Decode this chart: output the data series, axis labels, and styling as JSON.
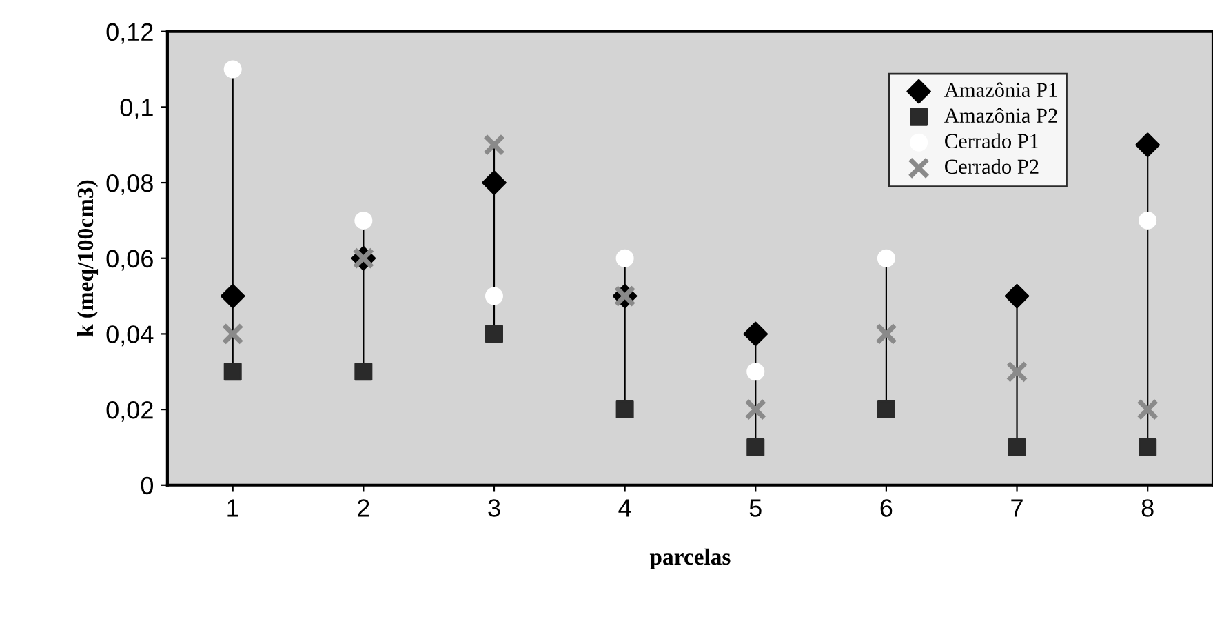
{
  "chart_data": {
    "type": "scatter",
    "xlabel": "parcelas",
    "ylabel": "k (meq/100cm3)",
    "categories": [
      "1",
      "2",
      "3",
      "4",
      "5",
      "6",
      "7",
      "8"
    ],
    "ylim": [
      0,
      0.12
    ],
    "yticks": [
      0,
      {
        "value": 0.02,
        "label": "0,02"
      },
      {
        "value": 0.04,
        "label": "0,04"
      },
      {
        "value": 0.06,
        "label": "0,06"
      },
      {
        "value": 0.08,
        "label": "0,08"
      },
      {
        "value": 0.1,
        "label": "0,1"
      },
      {
        "value": 0.12,
        "label": "0,12"
      }
    ],
    "grid": false,
    "legend": "top right",
    "series": [
      {
        "name": "Amazônia P1",
        "color": "#000000",
        "marker": "diamond",
        "values": [
          0.05,
          0.06,
          0.08,
          0.05,
          0.04,
          null,
          0.05,
          0.09
        ]
      },
      {
        "name": "Amazônia P2",
        "color": "#2a2a2a",
        "marker": "square",
        "values": [
          0.03,
          0.03,
          0.04,
          0.02,
          0.01,
          0.02,
          0.01,
          0.01
        ]
      },
      {
        "name": "Cerrado P1",
        "color": "#ffffff",
        "marker": "circle",
        "values": [
          0.11,
          0.07,
          0.05,
          0.06,
          0.03,
          0.06,
          null,
          0.07
        ]
      },
      {
        "name": "Cerrado P2",
        "color": "#8a8a8a",
        "marker": "cross",
        "values": [
          0.04,
          0.06,
          0.09,
          0.05,
          0.02,
          0.04,
          0.03,
          0.02
        ]
      }
    ]
  }
}
